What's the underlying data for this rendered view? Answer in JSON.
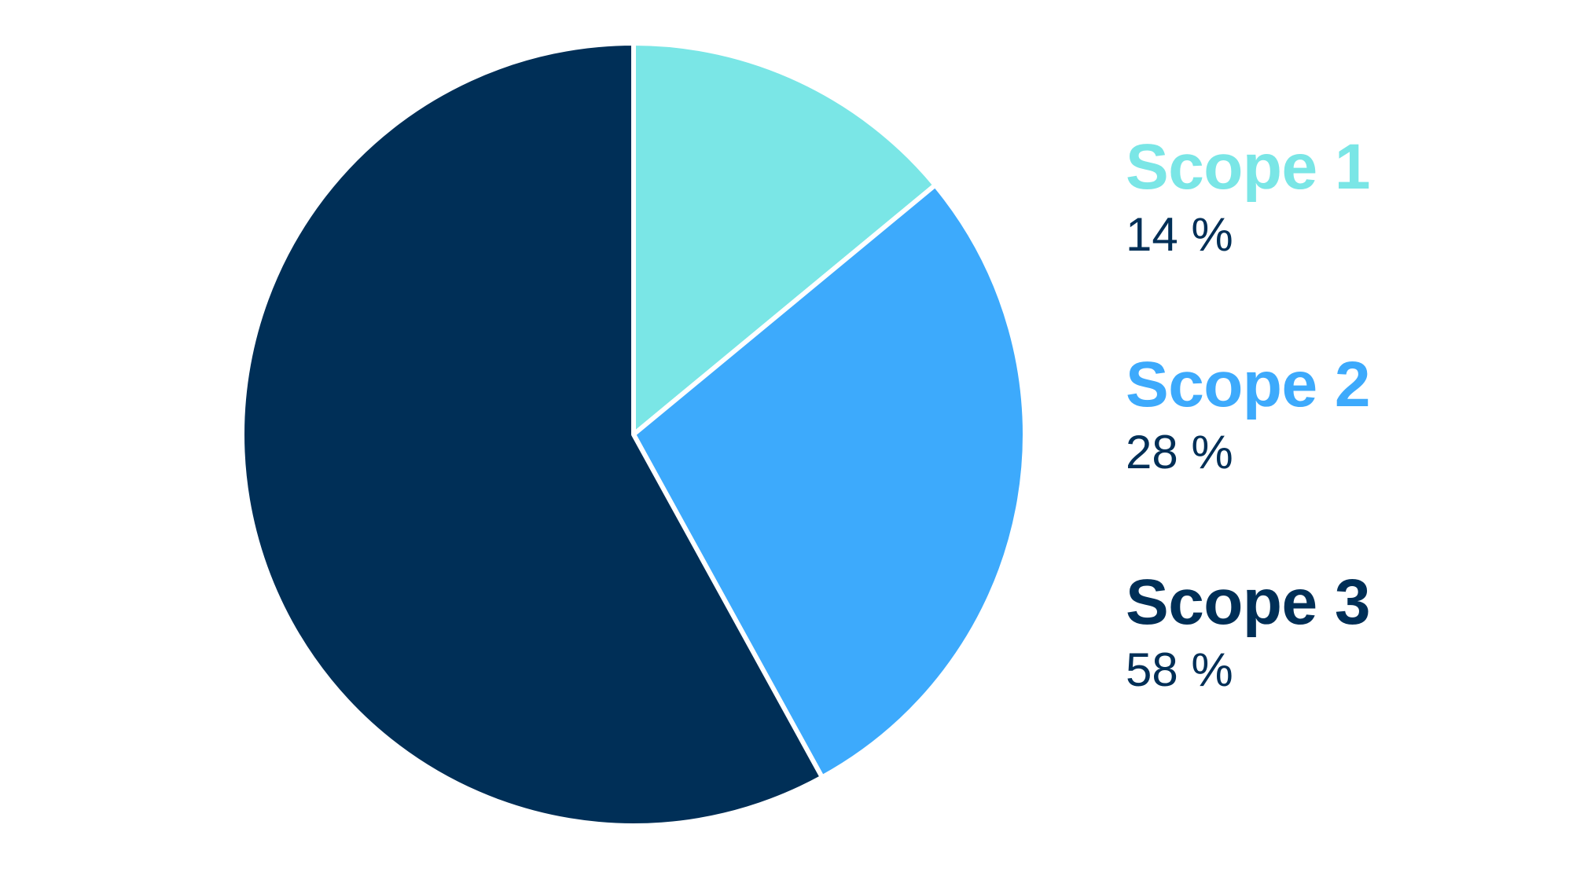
{
  "chart_data": {
    "type": "pie",
    "title": "",
    "slices": [
      {
        "label": "Scope 1",
        "value": 14,
        "display": "14 %",
        "color": "#7ae6e6"
      },
      {
        "label": "Scope 2",
        "value": 28,
        "display": "28 %",
        "color": "#3daafc"
      },
      {
        "label": "Scope 3",
        "value": 58,
        "display": "58 %",
        "color": "#002f57"
      }
    ],
    "legend_placement": "right",
    "value_text_color": "#002f57",
    "slice_separator_color": "#ffffff"
  }
}
